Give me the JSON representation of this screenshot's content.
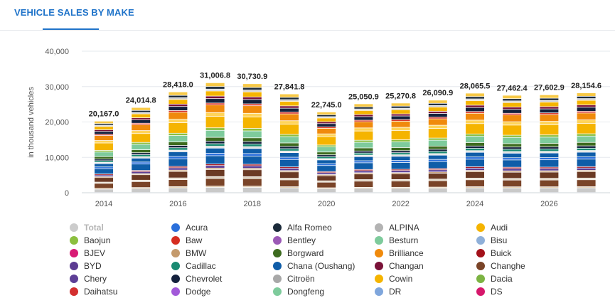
{
  "header": {
    "title": "VEHICLE SALES BY MAKE"
  },
  "chart_data": {
    "type": "bar",
    "stacked": true,
    "ylabel": "in thousand vehicles",
    "ylim": [
      0,
      40000
    ],
    "yticks": [
      "0",
      "10,000",
      "20,000",
      "30,000",
      "40,000"
    ],
    "x": [
      2014,
      2015,
      2016,
      2017,
      2018,
      2019,
      2020,
      2021,
      2022,
      2023,
      2024,
      2025,
      2026,
      2027
    ],
    "xticks": [
      "2014",
      "2016",
      "2018",
      "2020",
      "2022",
      "2024",
      "2026"
    ],
    "totals": [
      20167.0,
      24014.8,
      28418.0,
      31006.8,
      30730.9,
      27841.8,
      22745.0,
      25050.9,
      25270.8,
      26090.9,
      28065.5,
      27462.4,
      27602.9,
      28154.6
    ],
    "total_labels": [
      "20,167.0",
      "24,014.8",
      "28,418.0",
      "31,006.8",
      "30,730.9",
      "27,841.8",
      "22,745.0",
      "25,050.9",
      "25,270.8",
      "26,090.9",
      "28,065.5",
      "27,462.4",
      "27,602.9",
      "28,154.6"
    ],
    "grid": true
  },
  "legend": [
    {
      "name": "Total",
      "color": "#cccccc",
      "muted": true
    },
    {
      "name": "Acura",
      "color": "#2a6fdb"
    },
    {
      "name": "Alfa Romeo",
      "color": "#1b2a3a"
    },
    {
      "name": "ALPINA",
      "color": "#b3b3b3"
    },
    {
      "name": "Audi",
      "color": "#f5b400"
    },
    {
      "name": "Baojun",
      "color": "#8cbf3f"
    },
    {
      "name": "Baw",
      "color": "#d62d20"
    },
    {
      "name": "Bentley",
      "color": "#9b59b6"
    },
    {
      "name": "Besturn",
      "color": "#7ecb9c"
    },
    {
      "name": "Bisu",
      "color": "#8fb0d9"
    },
    {
      "name": "BJEV",
      "color": "#d81b75"
    },
    {
      "name": "BMW",
      "color": "#c49a6c"
    },
    {
      "name": "Borgward",
      "color": "#3d6b1f"
    },
    {
      "name": "Brilliance",
      "color": "#f08a0c"
    },
    {
      "name": "Buick",
      "color": "#a3111a"
    },
    {
      "name": "BYD",
      "color": "#5c3c92"
    },
    {
      "name": "Cadillac",
      "color": "#1a8a72"
    },
    {
      "name": "Chana (Oushang)",
      "color": "#0f5da8"
    },
    {
      "name": "Changan",
      "color": "#7a1238"
    },
    {
      "name": "Changhe",
      "color": "#7a4428"
    },
    {
      "name": "Chery",
      "color": "#5d3f96"
    },
    {
      "name": "Chevrolet",
      "color": "#14213d"
    },
    {
      "name": "Citroën",
      "color": "#a8a8a8"
    },
    {
      "name": "Cowin",
      "color": "#f5b400"
    },
    {
      "name": "Dacia",
      "color": "#7cb342"
    },
    {
      "name": "Daihatsu",
      "color": "#d32f2f"
    },
    {
      "name": "Dodge",
      "color": "#a259d9"
    },
    {
      "name": "Dongfeng",
      "color": "#7ecb9c"
    },
    {
      "name": "DR",
      "color": "#7fa6dc"
    },
    {
      "name": "DS",
      "color": "#d6176b"
    }
  ]
}
